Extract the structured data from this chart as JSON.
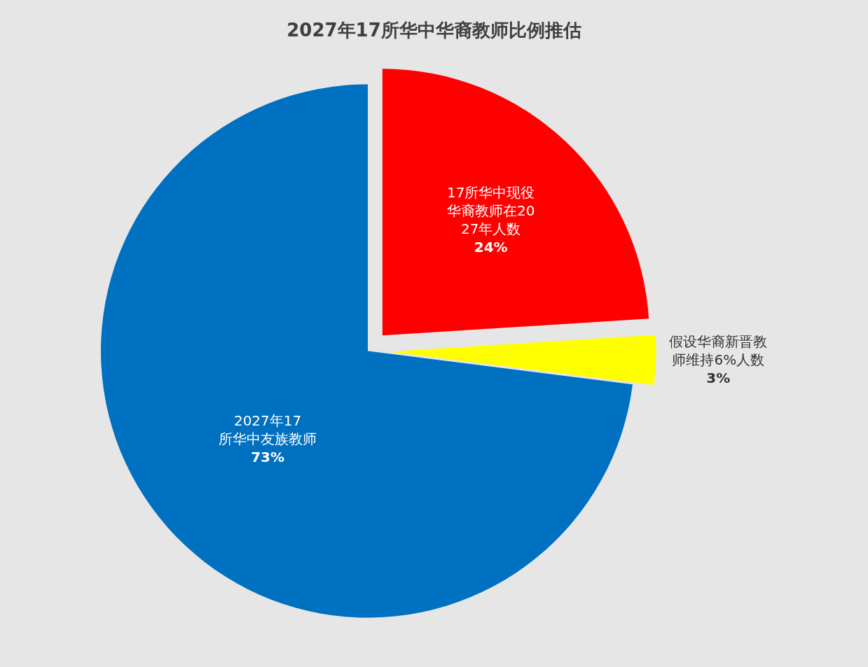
{
  "chart_data": {
    "type": "pie",
    "title": "2027年17所华中华裔教师比例推估",
    "categories": [
      "17所华中现役华裔教师在2027年人数",
      "假设华裔新晋教师维持6%人数",
      "2027年17所华中友族教师"
    ],
    "values": [
      24,
      3,
      73
    ],
    "colors": [
      "#ff0000",
      "#ffff00",
      "#0070c0"
    ],
    "value_labels": [
      "24%",
      "3%",
      "73%"
    ],
    "legend": false
  }
}
